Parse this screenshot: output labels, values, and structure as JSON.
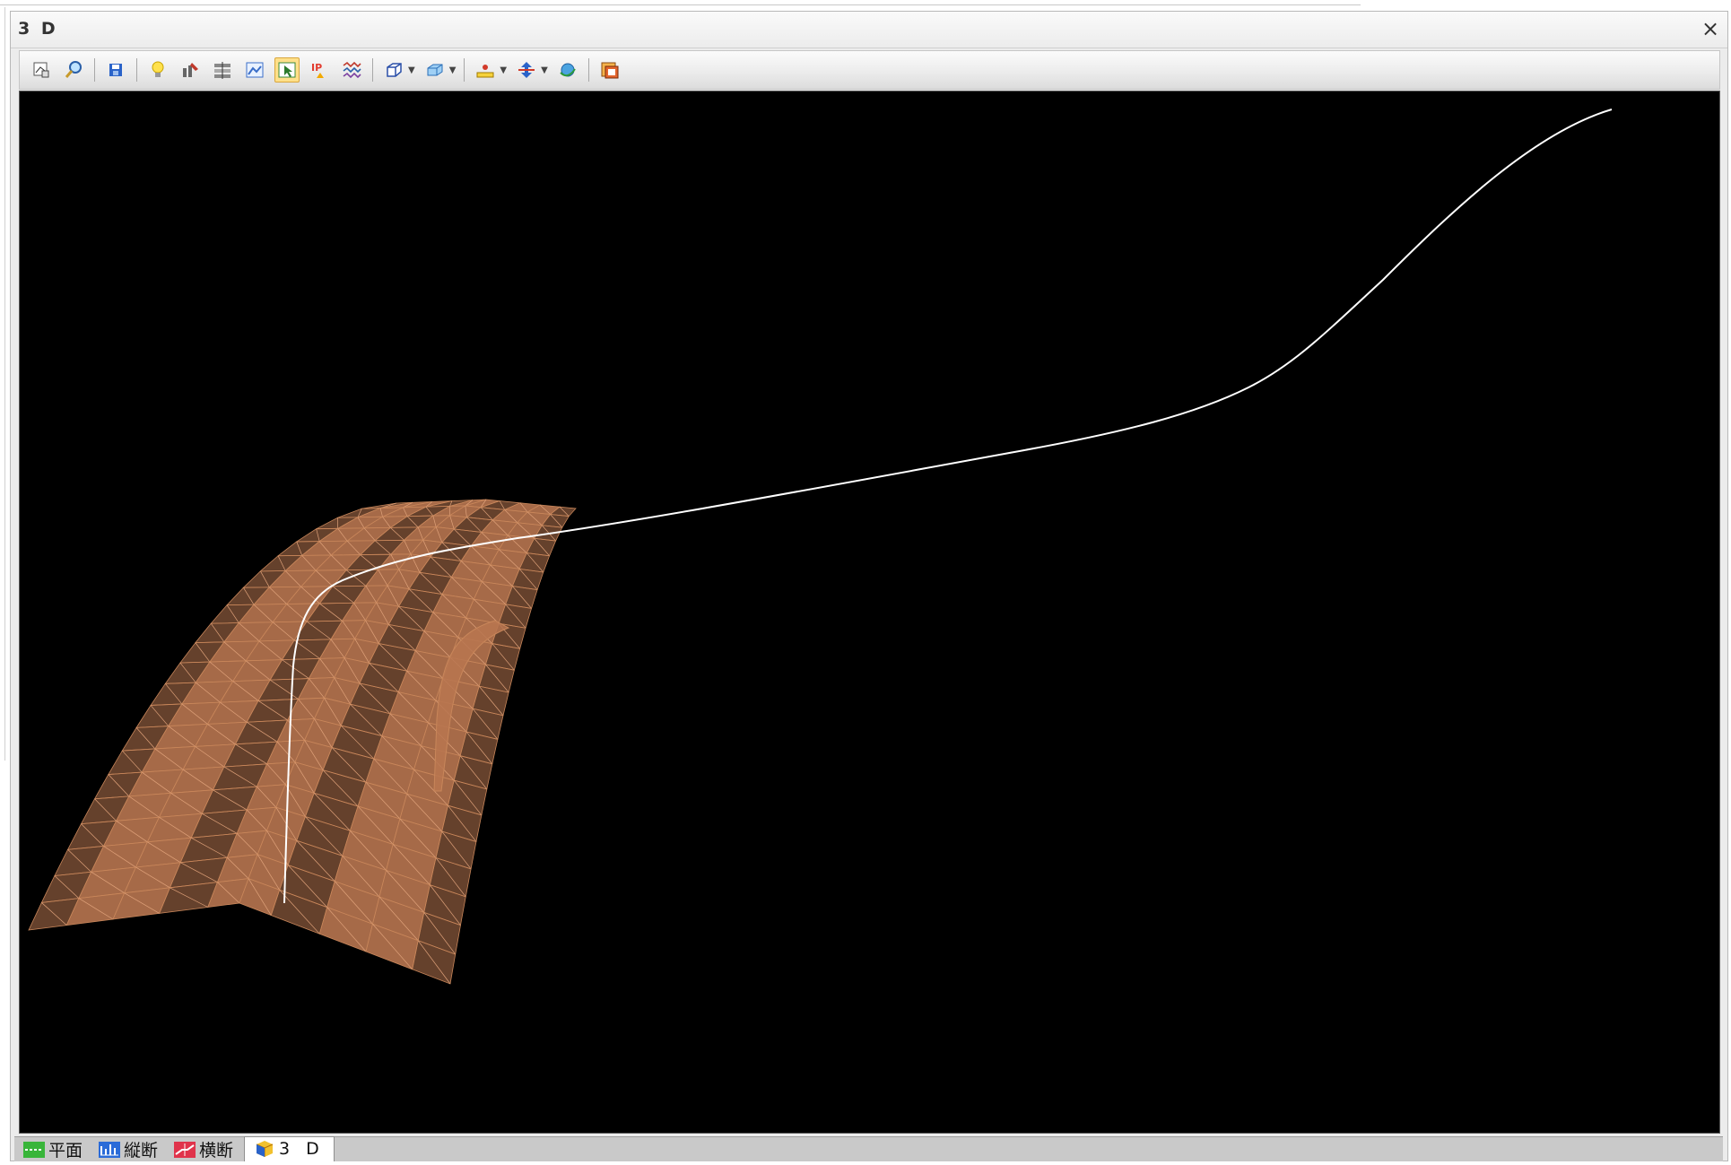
{
  "window": {
    "title": "3 D",
    "close": "×"
  },
  "toolbar": {
    "buttons": [
      "view-fit-icon",
      "zoom-icon",
      "save-icon",
      "light-icon",
      "paint-settings-icon",
      "layer-grid-icon",
      "terrain-view-icon",
      "select-view-icon",
      "ip-marker-icon",
      "wave-lines-icon",
      "box-view-icon",
      "box-shade-icon",
      "level-ruler-icon",
      "vertical-arrow-icon",
      "rotate-globe-icon",
      "export-icon"
    ],
    "active": "select-view-icon"
  },
  "viewport": {
    "background": "#000000",
    "mesh_color": "#c8865a",
    "mesh_fill": "#b87650",
    "alignment_color": "#ffffff"
  },
  "tabs": [
    {
      "label": "平面",
      "icon": "plan-icon",
      "color": "#39b53a"
    },
    {
      "label": "縦断",
      "icon": "profile-icon",
      "color": "#2a6bd8"
    },
    {
      "label": "横断",
      "icon": "cross-section-icon",
      "color": "#e0334b"
    },
    {
      "label": "3 D",
      "icon": "3d-cube-icon",
      "active": true
    }
  ]
}
